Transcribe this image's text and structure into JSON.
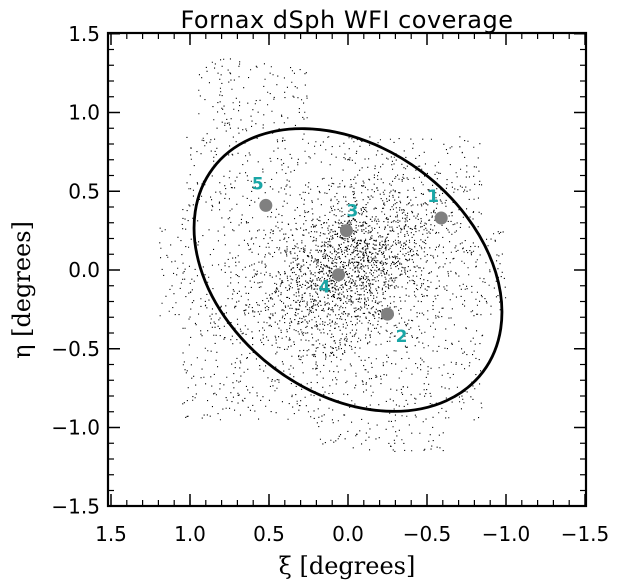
{
  "chart_data": {
    "type": "scatter",
    "title": "Fornax dSph WFI coverage",
    "xlabel": "ξ [degrees]",
    "ylabel": "η [degrees]",
    "xlim": [
      1.5,
      -1.5
    ],
    "ylim": [
      -1.6,
      1.6
    ],
    "x_ticks": [
      1.5,
      1.0,
      0.5,
      0.0,
      -0.5,
      -1.0,
      -1.5
    ],
    "x_tick_labels": [
      "1.5",
      "1.0",
      "0.5",
      "0.0",
      "−0.5",
      "−1.0",
      "−1.5"
    ],
    "y_ticks": [
      -1.5,
      -1.0,
      -0.5,
      0.0,
      0.5,
      1.0,
      1.5
    ],
    "y_tick_labels": [
      "−1.5",
      "−1.0",
      "−0.5",
      "0.0",
      "0.5",
      "1.0",
      "1.5"
    ],
    "grid": false,
    "star_field": {
      "center": [
        0.0,
        0.0
      ],
      "core_fraction": 0.45,
      "color": "#000000",
      "coverage_bounds": {
        "xi": [
          1.2,
          -1.0
        ],
        "eta": [
          -1.15,
          1.35
        ]
      }
    },
    "ellipse": {
      "center_xi": 0.0,
      "center_eta": 0.0,
      "semi_major": 1.07,
      "semi_minor": 0.78,
      "major_axis_description": "tilted, running from upper-left to lower-right"
    },
    "clusters": [
      {
        "label": "1",
        "xi": -0.59,
        "eta": 0.33
      },
      {
        "label": "2",
        "xi": -0.25,
        "eta": -0.28
      },
      {
        "label": "3",
        "xi": 0.01,
        "eta": 0.25
      },
      {
        "label": "4",
        "xi": 0.06,
        "eta": -0.03
      },
      {
        "label": "5",
        "xi": 0.52,
        "eta": 0.41
      }
    ],
    "cluster_marker_color": "#808080",
    "cluster_label_color": "#1aa6a6"
  }
}
